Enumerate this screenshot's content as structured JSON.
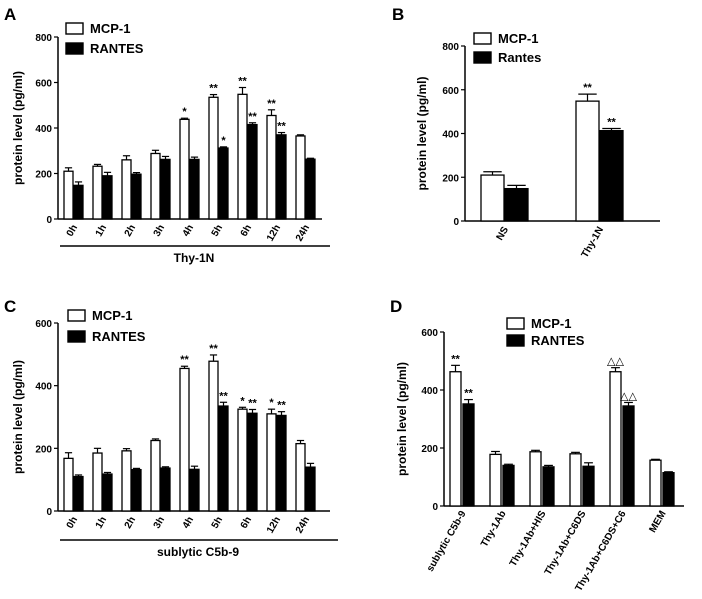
{
  "chart_data": [
    {
      "panel": "A",
      "type": "bar",
      "categories": [
        "0h",
        "1h",
        "2h",
        "3h",
        "4h",
        "5h",
        "6h",
        "12h",
        "24h"
      ],
      "series": [
        {
          "name": "MCP-1",
          "values": [
            210,
            232,
            260,
            288,
            438,
            535,
            548,
            455,
            365
          ],
          "errors": [
            15,
            8,
            18,
            14,
            5,
            12,
            30,
            25,
            5
          ]
        },
        {
          "name": "RANTES",
          "values": [
            148,
            190,
            197,
            262,
            262,
            312,
            415,
            370,
            263
          ],
          "errors": [
            15,
            15,
            7,
            13,
            10,
            5,
            8,
            10,
            4
          ]
        }
      ],
      "annotations": [
        [
          "",
          "",
          "",
          "",
          "*",
          "**",
          "**",
          "**",
          ""
        ],
        [
          "",
          "",
          "",
          "",
          "",
          "*",
          "**",
          "**",
          ""
        ]
      ],
      "xlabel": "Thy-1N",
      "ylabel": "protein level (pg/ml)",
      "ylim": [
        0,
        800
      ],
      "yticks": [
        0,
        200,
        400,
        600,
        800
      ],
      "legend_position": "top-left"
    },
    {
      "panel": "B",
      "type": "bar",
      "categories": [
        "NS",
        "Thy-1N"
      ],
      "series": [
        {
          "name": "MCP-1",
          "values": [
            210,
            548
          ],
          "errors": [
            15,
            32
          ]
        },
        {
          "name": "Rantes",
          "values": [
            148,
            413
          ],
          "errors": [
            15,
            10
          ]
        }
      ],
      "annotations": [
        [
          "",
          "**"
        ],
        [
          "",
          "**"
        ]
      ],
      "xlabel": "",
      "ylabel": "protein level (pg/ml)",
      "ylim": [
        0,
        800
      ],
      "yticks": [
        0,
        200,
        400,
        600,
        800
      ],
      "legend_position": "top-center"
    },
    {
      "panel": "C",
      "type": "bar",
      "categories": [
        "0h",
        "1h",
        "2h",
        "3h",
        "4h",
        "5h",
        "6h",
        "12h",
        "24h"
      ],
      "series": [
        {
          "name": "MCP-1",
          "values": [
            168,
            185,
            192,
            225,
            455,
            478,
            325,
            310,
            215
          ],
          "errors": [
            18,
            15,
            7,
            5,
            7,
            20,
            6,
            15,
            10
          ]
        },
        {
          "name": "RANTES",
          "values": [
            110,
            118,
            132,
            137,
            133,
            335,
            312,
            305,
            140
          ],
          "errors": [
            5,
            5,
            4,
            4,
            10,
            12,
            12,
            12,
            12
          ]
        }
      ],
      "annotations": [
        [
          "",
          "",
          "",
          "",
          "**",
          "**",
          "*",
          "*",
          ""
        ],
        [
          "",
          "",
          "",
          "",
          "",
          "**",
          "**",
          "**",
          ""
        ]
      ],
      "xlabel": "sublytic C5b-9",
      "ylabel": "protein level (pg/ml)",
      "ylim": [
        0,
        600
      ],
      "yticks": [
        0,
        200,
        400,
        600
      ],
      "legend_position": "top-left"
    },
    {
      "panel": "D",
      "type": "bar",
      "categories": [
        "sublytic C5b-9",
        "Thy-1Ab",
        "Thy-1Ab+HIS",
        "Thy-1Ab+C6DS",
        "Thy-1Ab+C6DS+C6",
        "MEM"
      ],
      "series": [
        {
          "name": "MCP-1",
          "values": [
            463,
            178,
            187,
            180,
            463,
            158
          ],
          "errors": [
            22,
            10,
            5,
            5,
            14,
            3
          ]
        },
        {
          "name": "RANTES",
          "values": [
            352,
            140,
            135,
            137,
            345,
            115
          ],
          "errors": [
            15,
            4,
            5,
            12,
            12,
            3
          ]
        }
      ],
      "annotations": [
        [
          "**",
          "",
          "",
          "",
          "△△",
          ""
        ],
        [
          "**",
          "",
          "",
          "",
          "△△",
          ""
        ]
      ],
      "xlabel": "",
      "ylabel": "protein level (pg/ml)",
      "ylim": [
        0,
        600
      ],
      "yticks": [
        0,
        200,
        400,
        600
      ],
      "legend_position": "top-right"
    }
  ],
  "panels": {
    "a": {
      "label": "A"
    },
    "b": {
      "label": "B"
    },
    "c": {
      "label": "C"
    },
    "d": {
      "label": "D"
    }
  },
  "colors": {
    "series1_fill": "#ffffff",
    "series2_fill": "#000000",
    "stroke": "#000000"
  }
}
